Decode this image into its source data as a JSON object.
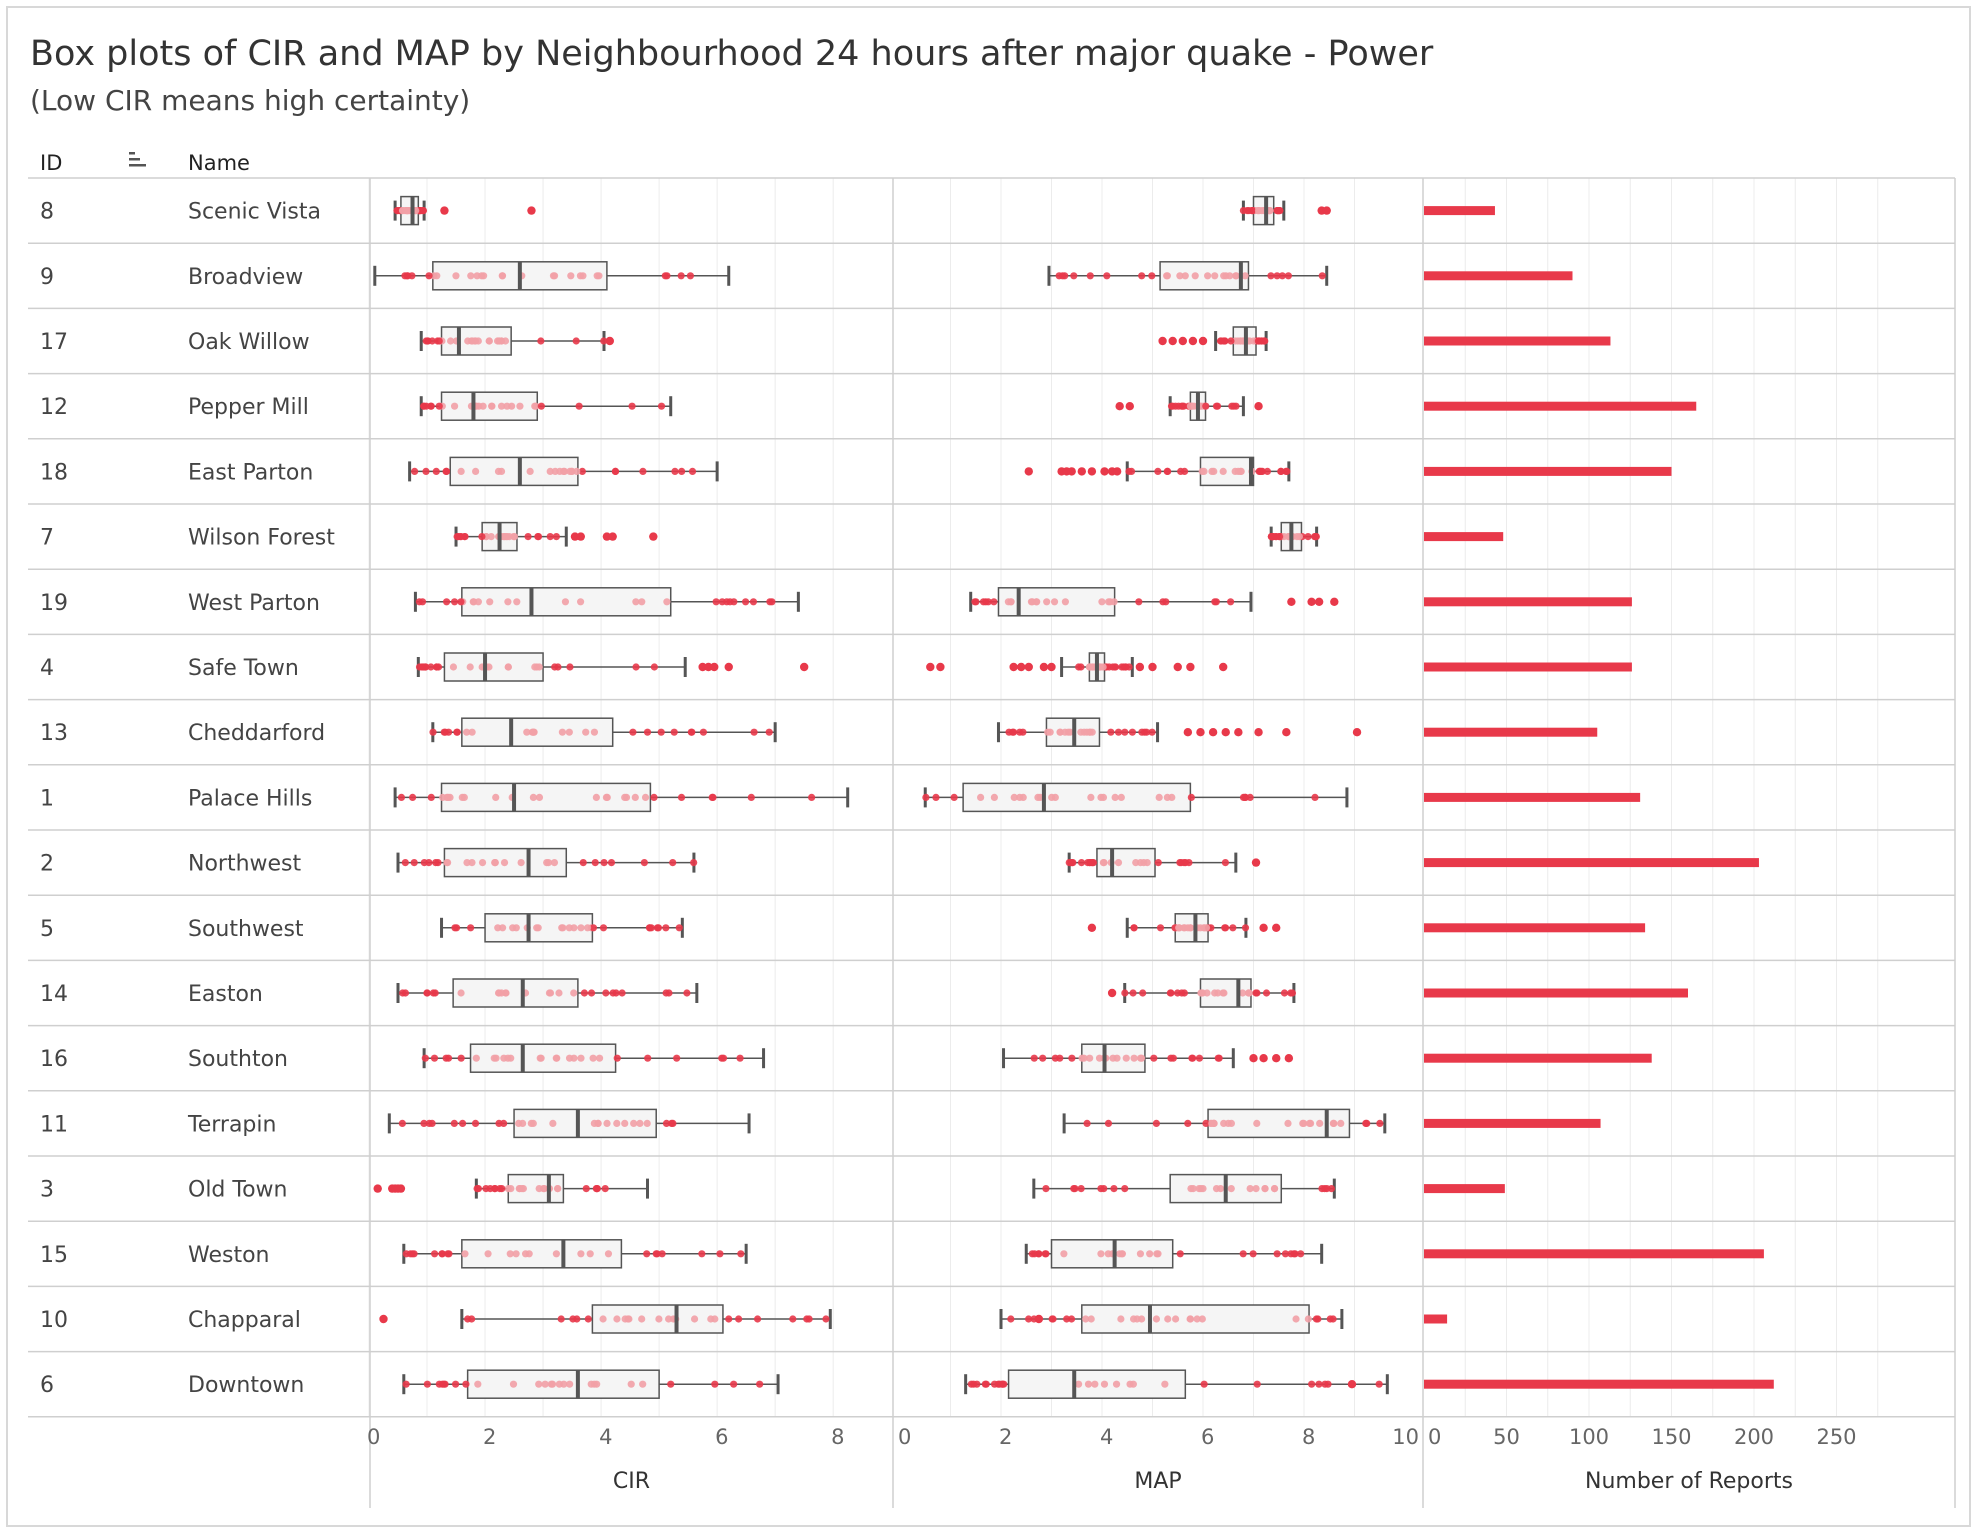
{
  "header": {
    "title": "Box plots of CIR and MAP by Neighbourhood 24 hours after major quake - Power",
    "subtitle": "(Low CIR means high certainty)"
  },
  "columns": {
    "id": "ID",
    "name": "Name"
  },
  "colors": {
    "outlier": "#e8394a",
    "point_light": "#f2a0a6",
    "box_line": "#555555",
    "grid": "#ececec",
    "divider": "#cfcfcf",
    "bar": "#e8394a"
  },
  "chart_data": [
    {
      "type": "boxplot",
      "xlabel": "CIR",
      "xlim": [
        0,
        8.6
      ],
      "ticks": [
        0,
        2,
        4,
        6,
        8
      ],
      "rows": [
        {
          "id": "8",
          "name": "Scenic Vista",
          "min": 0.45,
          "q1": 0.55,
          "median": 0.75,
          "q3": 0.85,
          "max": 0.95,
          "outliers": [
            1.3,
            2.8
          ]
        },
        {
          "id": "9",
          "name": "Broadview",
          "min": 0.1,
          "q1": 1.1,
          "median": 2.6,
          "q3": 4.1,
          "max": 6.2,
          "outliers": []
        },
        {
          "id": "17",
          "name": "Oak Willow",
          "min": 0.9,
          "q1": 1.25,
          "median": 1.55,
          "q3": 2.45,
          "max": 4.05,
          "outliers": [
            4.15
          ]
        },
        {
          "id": "12",
          "name": "Pepper Mill",
          "min": 0.9,
          "q1": 1.25,
          "median": 1.8,
          "q3": 2.9,
          "max": 5.2,
          "outliers": []
        },
        {
          "id": "18",
          "name": "East Parton",
          "min": 0.7,
          "q1": 1.4,
          "median": 2.6,
          "q3": 3.6,
          "max": 6.0,
          "outliers": []
        },
        {
          "id": "7",
          "name": "Wilson Forest",
          "min": 1.5,
          "q1": 1.95,
          "median": 2.25,
          "q3": 2.55,
          "max": 3.4,
          "outliers": [
            3.55,
            3.65,
            4.1,
            4.2,
            4.9
          ]
        },
        {
          "id": "19",
          "name": "West Parton",
          "min": 0.8,
          "q1": 1.6,
          "median": 2.8,
          "q3": 5.2,
          "max": 7.4,
          "outliers": []
        },
        {
          "id": "4",
          "name": "Safe Town",
          "min": 0.85,
          "q1": 1.3,
          "median": 2.0,
          "q3": 3.0,
          "max": 5.45,
          "outliers": [
            5.75,
            5.85,
            5.95,
            6.2,
            7.5
          ]
        },
        {
          "id": "13",
          "name": "Cheddarford",
          "min": 1.1,
          "q1": 1.6,
          "median": 2.45,
          "q3": 4.2,
          "max": 7.0,
          "outliers": []
        },
        {
          "id": "1",
          "name": "Palace Hills",
          "min": 0.45,
          "q1": 1.25,
          "median": 2.5,
          "q3": 4.85,
          "max": 8.25,
          "outliers": []
        },
        {
          "id": "2",
          "name": "Northwest",
          "min": 0.5,
          "q1": 1.3,
          "median": 2.75,
          "q3": 3.4,
          "max": 5.6,
          "outliers": []
        },
        {
          "id": "5",
          "name": "Southwest",
          "min": 1.25,
          "q1": 2.0,
          "median": 2.75,
          "q3": 3.85,
          "max": 5.4,
          "outliers": []
        },
        {
          "id": "14",
          "name": "Easton",
          "min": 0.5,
          "q1": 1.45,
          "median": 2.65,
          "q3": 3.6,
          "max": 5.65,
          "outliers": []
        },
        {
          "id": "16",
          "name": "Southton",
          "min": 0.95,
          "q1": 1.75,
          "median": 2.65,
          "q3": 4.25,
          "max": 6.8,
          "outliers": []
        },
        {
          "id": "11",
          "name": "Terrapin",
          "min": 0.35,
          "q1": 2.5,
          "median": 3.6,
          "q3": 4.95,
          "max": 6.55,
          "outliers": []
        },
        {
          "id": "3",
          "name": "Old Town",
          "min": 1.85,
          "q1": 2.4,
          "median": 3.1,
          "q3": 3.35,
          "max": 4.8,
          "outliers": [
            0.15,
            0.4,
            0.45,
            0.5,
            0.55
          ]
        },
        {
          "id": "15",
          "name": "Weston",
          "min": 0.6,
          "q1": 1.6,
          "median": 3.35,
          "q3": 4.35,
          "max": 6.5,
          "outliers": []
        },
        {
          "id": "10",
          "name": "Chapparal",
          "min": 1.6,
          "q1": 3.85,
          "median": 5.3,
          "q3": 6.1,
          "max": 7.95,
          "outliers": [
            0.25
          ]
        },
        {
          "id": "6",
          "name": "Downtown",
          "min": 0.6,
          "q1": 1.7,
          "median": 3.6,
          "q3": 5.0,
          "max": 7.05,
          "outliers": []
        }
      ]
    },
    {
      "type": "boxplot",
      "xlabel": "MAP",
      "xlim": [
        0,
        10
      ],
      "ticks": [
        0,
        2,
        4,
        6,
        8,
        10
      ],
      "rows": [
        {
          "id": "8",
          "name": "Scenic Vista",
          "min": 6.8,
          "q1": 7.0,
          "median": 7.25,
          "q3": 7.4,
          "max": 7.6,
          "outliers": [
            8.35,
            8.45
          ]
        },
        {
          "id": "9",
          "name": "Broadview",
          "min": 2.95,
          "q1": 5.15,
          "median": 6.75,
          "q3": 6.9,
          "max": 8.45,
          "outliers": []
        },
        {
          "id": "17",
          "name": "Oak Willow",
          "min": 6.25,
          "q1": 6.6,
          "median": 6.85,
          "q3": 7.05,
          "max": 7.25,
          "outliers": [
            5.2,
            5.4,
            5.6,
            5.8,
            6.0
          ]
        },
        {
          "id": "12",
          "name": "Pepper Mill",
          "min": 5.35,
          "q1": 5.75,
          "median": 5.9,
          "q3": 6.05,
          "max": 6.8,
          "outliers": [
            4.35,
            4.55,
            7.1
          ]
        },
        {
          "id": "18",
          "name": "East Parton",
          "min": 4.5,
          "q1": 5.95,
          "median": 6.95,
          "q3": 7.0,
          "max": 7.7,
          "outliers": [
            2.55,
            3.2,
            3.3,
            3.4,
            3.6,
            3.8,
            4.05,
            4.2,
            4.3
          ]
        },
        {
          "id": "7",
          "name": "Wilson Forest",
          "min": 7.35,
          "q1": 7.55,
          "median": 7.75,
          "q3": 7.95,
          "max": 8.25,
          "outliers": []
        },
        {
          "id": "19",
          "name": "West Parton",
          "min": 1.4,
          "q1": 1.95,
          "median": 2.35,
          "q3": 4.25,
          "max": 6.95,
          "outliers": [
            7.75,
            8.15,
            8.3,
            8.6
          ]
        },
        {
          "id": "4",
          "name": "Safe Town",
          "min": 3.2,
          "q1": 3.75,
          "median": 3.9,
          "q3": 4.05,
          "max": 4.6,
          "outliers": [
            0.6,
            0.8,
            2.25,
            2.4,
            2.55,
            2.85,
            3.0,
            4.75,
            5.0,
            5.5,
            5.75,
            6.4
          ]
        },
        {
          "id": "13",
          "name": "Cheddarford",
          "min": 1.95,
          "q1": 2.9,
          "median": 3.45,
          "q3": 3.95,
          "max": 5.1,
          "outliers": [
            5.7,
            5.95,
            6.2,
            6.45,
            6.7,
            7.1,
            7.65,
            9.05
          ]
        },
        {
          "id": "1",
          "name": "Palace Hills",
          "min": 0.5,
          "q1": 1.25,
          "median": 2.85,
          "q3": 5.75,
          "max": 8.85,
          "outliers": []
        },
        {
          "id": "2",
          "name": "Northwest",
          "min": 3.35,
          "q1": 3.9,
          "median": 4.2,
          "q3": 5.05,
          "max": 6.65,
          "outliers": [
            7.05
          ]
        },
        {
          "id": "5",
          "name": "Southwest",
          "min": 4.5,
          "q1": 5.45,
          "median": 5.85,
          "q3": 6.1,
          "max": 6.85,
          "outliers": [
            3.8,
            7.2,
            7.45
          ]
        },
        {
          "id": "14",
          "name": "Easton",
          "min": 4.45,
          "q1": 5.95,
          "median": 6.7,
          "q3": 6.95,
          "max": 7.8,
          "outliers": [
            4.2
          ]
        },
        {
          "id": "16",
          "name": "Southton",
          "min": 2.05,
          "q1": 3.6,
          "median": 4.05,
          "q3": 4.85,
          "max": 6.6,
          "outliers": [
            7.0,
            7.2,
            7.45,
            7.7
          ]
        },
        {
          "id": "11",
          "name": "Terrapin",
          "min": 3.25,
          "q1": 6.1,
          "median": 8.45,
          "q3": 8.9,
          "max": 9.6,
          "outliers": []
        },
        {
          "id": "3",
          "name": "Old Town",
          "min": 2.65,
          "q1": 5.35,
          "median": 6.45,
          "q3": 7.55,
          "max": 8.6,
          "outliers": []
        },
        {
          "id": "15",
          "name": "Weston",
          "min": 2.5,
          "q1": 3.0,
          "median": 4.25,
          "q3": 5.4,
          "max": 8.35,
          "outliers": []
        },
        {
          "id": "10",
          "name": "Chapparal",
          "min": 2.0,
          "q1": 3.6,
          "median": 4.95,
          "q3": 8.1,
          "max": 8.75,
          "outliers": [
            2.75
          ]
        },
        {
          "id": "6",
          "name": "Downtown",
          "min": 1.3,
          "q1": 2.15,
          "median": 3.45,
          "q3": 5.65,
          "max": 9.65,
          "outliers": [
            8.95
          ]
        }
      ]
    },
    {
      "type": "bar",
      "xlabel": "Number of Reports",
      "xlim": [
        0,
        280
      ],
      "ticks": [
        0,
        50,
        100,
        150,
        200,
        250
      ],
      "categories": [
        "Scenic Vista",
        "Broadview",
        "Oak Willow",
        "Pepper Mill",
        "East Parton",
        "Wilson Forest",
        "West Parton",
        "Safe Town",
        "Cheddarford",
        "Palace Hills",
        "Northwest",
        "Southwest",
        "Easton",
        "Southton",
        "Terrapin",
        "Old Town",
        "Weston",
        "Chapparal",
        "Downtown"
      ],
      "values": [
        43,
        90,
        113,
        165,
        150,
        48,
        126,
        126,
        105,
        131,
        203,
        134,
        160,
        138,
        107,
        49,
        206,
        14,
        212
      ]
    }
  ]
}
